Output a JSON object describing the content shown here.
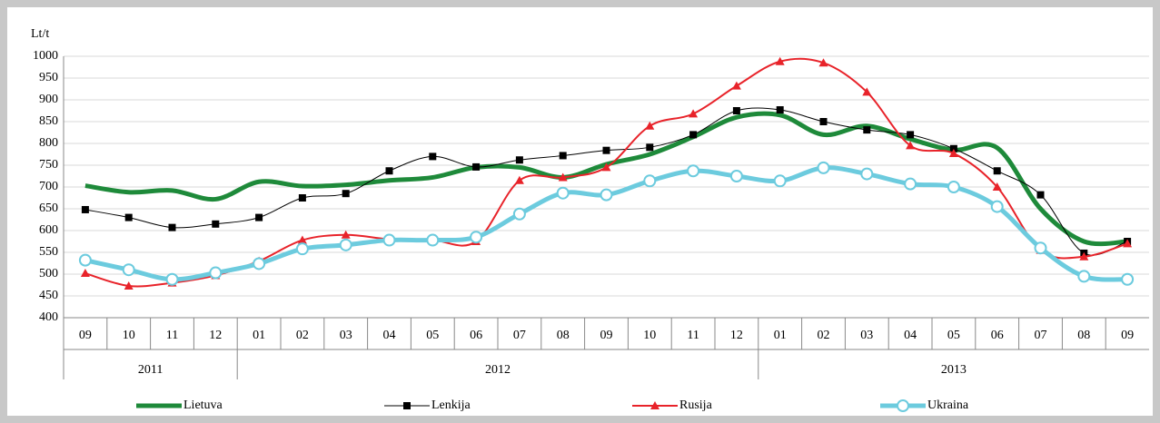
{
  "chart_data": {
    "type": "line",
    "y_label": "Lt/t",
    "categories": [
      "09",
      "10",
      "11",
      "12",
      "01",
      "02",
      "03",
      "04",
      "05",
      "06",
      "07",
      "08",
      "09",
      "10",
      "11",
      "12",
      "01",
      "02",
      "03",
      "04",
      "05",
      "06",
      "07",
      "08",
      "09"
    ],
    "year_groups": [
      "2011",
      "2012",
      "2013"
    ],
    "ylim": [
      400,
      1000
    ],
    "yticks": [
      400,
      450,
      500,
      550,
      600,
      650,
      700,
      750,
      800,
      850,
      900,
      950,
      1000
    ],
    "grid": true,
    "legend": "bottom",
    "series": [
      {
        "name": "Lietuva",
        "color": "#1e8a3a",
        "line_width": 5,
        "marker": null,
        "values": [
          703,
          688,
          692,
          672,
          712,
          702,
          705,
          715,
          722,
          745,
          745,
          722,
          752,
          775,
          815,
          860,
          865,
          820,
          840,
          810,
          785,
          790,
          650,
          575,
          575
        ]
      },
      {
        "name": "Lenkija",
        "color": "#000000",
        "line_width": 1,
        "marker": "square",
        "values": [
          648,
          630,
          607,
          615,
          630,
          675,
          685,
          737,
          770,
          746,
          762,
          772,
          784,
          791,
          820,
          875,
          877,
          850,
          831,
          820,
          788,
          737,
          682,
          548,
          575
        ]
      },
      {
        "name": "Rusija",
        "color": "#e8232a",
        "line_width": 2,
        "marker": "triangle",
        "values": [
          502,
          473,
          480,
          497,
          530,
          578,
          590,
          580,
          578,
          575,
          715,
          722,
          745,
          840,
          868,
          932,
          988,
          985,
          918,
          795,
          777,
          700,
          555,
          540,
          570
        ]
      },
      {
        "name": "Ukraina",
        "color": "#6ccbde",
        "line_width": 5,
        "marker": "circle",
        "values": [
          532,
          510,
          488,
          503,
          524,
          558,
          567,
          578,
          578,
          585,
          638,
          686,
          682,
          714,
          737,
          725,
          714,
          744,
          730,
          707,
          700,
          655,
          560,
          495,
          488
        ]
      }
    ]
  }
}
